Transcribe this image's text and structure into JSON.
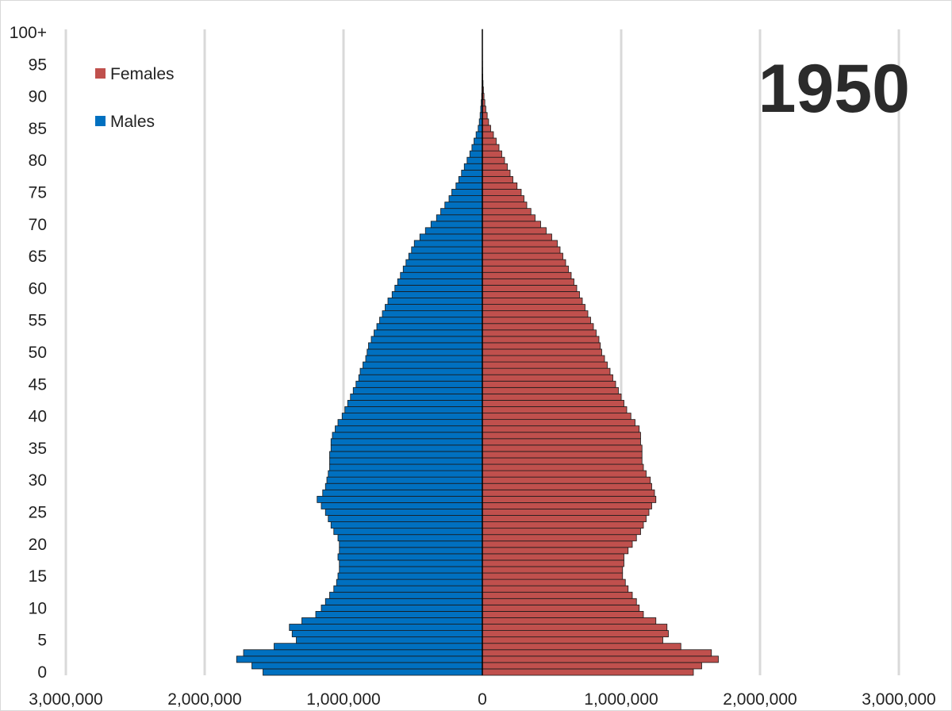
{
  "chart_data": {
    "type": "bar",
    "orientation": "horizontal",
    "subtype": "population-pyramid",
    "annotation": "1950",
    "x_range": [
      -3000000,
      3000000
    ],
    "x_ticks": [
      -3000000,
      -2000000,
      -1000000,
      0,
      1000000,
      2000000,
      3000000
    ],
    "x_tick_labels": [
      "3,000,000",
      "2,000,000",
      "1,000,000",
      "0",
      "1,000,000",
      "2,000,000",
      "3,000,000"
    ],
    "y_tick_labels": [
      "0",
      "5",
      "10",
      "15",
      "20",
      "25",
      "30",
      "35",
      "40",
      "45",
      "50",
      "55",
      "60",
      "65",
      "70",
      "75",
      "80",
      "85",
      "90",
      "95",
      "100+"
    ],
    "grid": true,
    "legend_position": "top-left",
    "categories": [
      "0",
      "1",
      "2",
      "3",
      "4",
      "5",
      "6",
      "7",
      "8",
      "9",
      "10",
      "11",
      "12",
      "13",
      "14",
      "15",
      "16",
      "17",
      "18",
      "19",
      "20",
      "21",
      "22",
      "23",
      "24",
      "25",
      "26",
      "27",
      "28",
      "29",
      "30",
      "31",
      "32",
      "33",
      "34",
      "35",
      "36",
      "37",
      "38",
      "39",
      "40",
      "41",
      "42",
      "43",
      "44",
      "45",
      "46",
      "47",
      "48",
      "49",
      "50",
      "51",
      "52",
      "53",
      "54",
      "55",
      "56",
      "57",
      "58",
      "59",
      "60",
      "61",
      "62",
      "63",
      "64",
      "65",
      "66",
      "67",
      "68",
      "69",
      "70",
      "71",
      "72",
      "73",
      "74",
      "75",
      "76",
      "77",
      "78",
      "79",
      "80",
      "81",
      "82",
      "83",
      "84",
      "85",
      "86",
      "87",
      "88",
      "89",
      "90",
      "91",
      "92",
      "93",
      "94",
      "95",
      "96",
      "97",
      "98",
      "99",
      "100+"
    ],
    "series": [
      {
        "name": "Females",
        "color": "#c0504d",
        "values": [
          1520000,
          1580000,
          1700000,
          1650000,
          1430000,
          1300000,
          1340000,
          1330000,
          1250000,
          1160000,
          1130000,
          1110000,
          1080000,
          1050000,
          1030000,
          1010000,
          1010000,
          1020000,
          1020000,
          1050000,
          1080000,
          1110000,
          1140000,
          1160000,
          1180000,
          1200000,
          1220000,
          1250000,
          1240000,
          1220000,
          1210000,
          1180000,
          1160000,
          1150000,
          1150000,
          1150000,
          1140000,
          1140000,
          1130000,
          1100000,
          1070000,
          1040000,
          1020000,
          1000000,
          980000,
          960000,
          940000,
          920000,
          900000,
          880000,
          860000,
          850000,
          840000,
          820000,
          800000,
          780000,
          760000,
          740000,
          720000,
          700000,
          680000,
          660000,
          640000,
          620000,
          600000,
          580000,
          560000,
          540000,
          500000,
          460000,
          420000,
          380000,
          350000,
          320000,
          300000,
          280000,
          250000,
          220000,
          200000,
          180000,
          160000,
          140000,
          120000,
          100000,
          80000,
          60000,
          45000,
          35000,
          25000,
          18000,
          12000,
          8000,
          5000,
          3000,
          2000,
          1500,
          1000,
          800,
          600,
          400,
          300
        ]
      },
      {
        "name": "Males",
        "color": "#0070c0",
        "values": [
          1580000,
          1660000,
          1770000,
          1720000,
          1500000,
          1340000,
          1370000,
          1390000,
          1300000,
          1200000,
          1160000,
          1130000,
          1100000,
          1070000,
          1050000,
          1040000,
          1030000,
          1030000,
          1040000,
          1030000,
          1030000,
          1040000,
          1070000,
          1090000,
          1110000,
          1130000,
          1160000,
          1190000,
          1150000,
          1130000,
          1120000,
          1110000,
          1100000,
          1100000,
          1100000,
          1090000,
          1090000,
          1080000,
          1060000,
          1040000,
          1010000,
          990000,
          970000,
          950000,
          930000,
          910000,
          890000,
          880000,
          860000,
          840000,
          830000,
          820000,
          800000,
          780000,
          760000,
          740000,
          720000,
          700000,
          680000,
          650000,
          630000,
          610000,
          590000,
          570000,
          550000,
          530000,
          510000,
          490000,
          450000,
          410000,
          370000,
          330000,
          300000,
          270000,
          240000,
          220000,
          190000,
          170000,
          150000,
          130000,
          110000,
          90000,
          75000,
          60000,
          45000,
          30000,
          22000,
          16000,
          12000,
          8000,
          5000,
          3000,
          2000,
          1200,
          800,
          500,
          300,
          200,
          150,
          100,
          80
        ]
      }
    ]
  }
}
